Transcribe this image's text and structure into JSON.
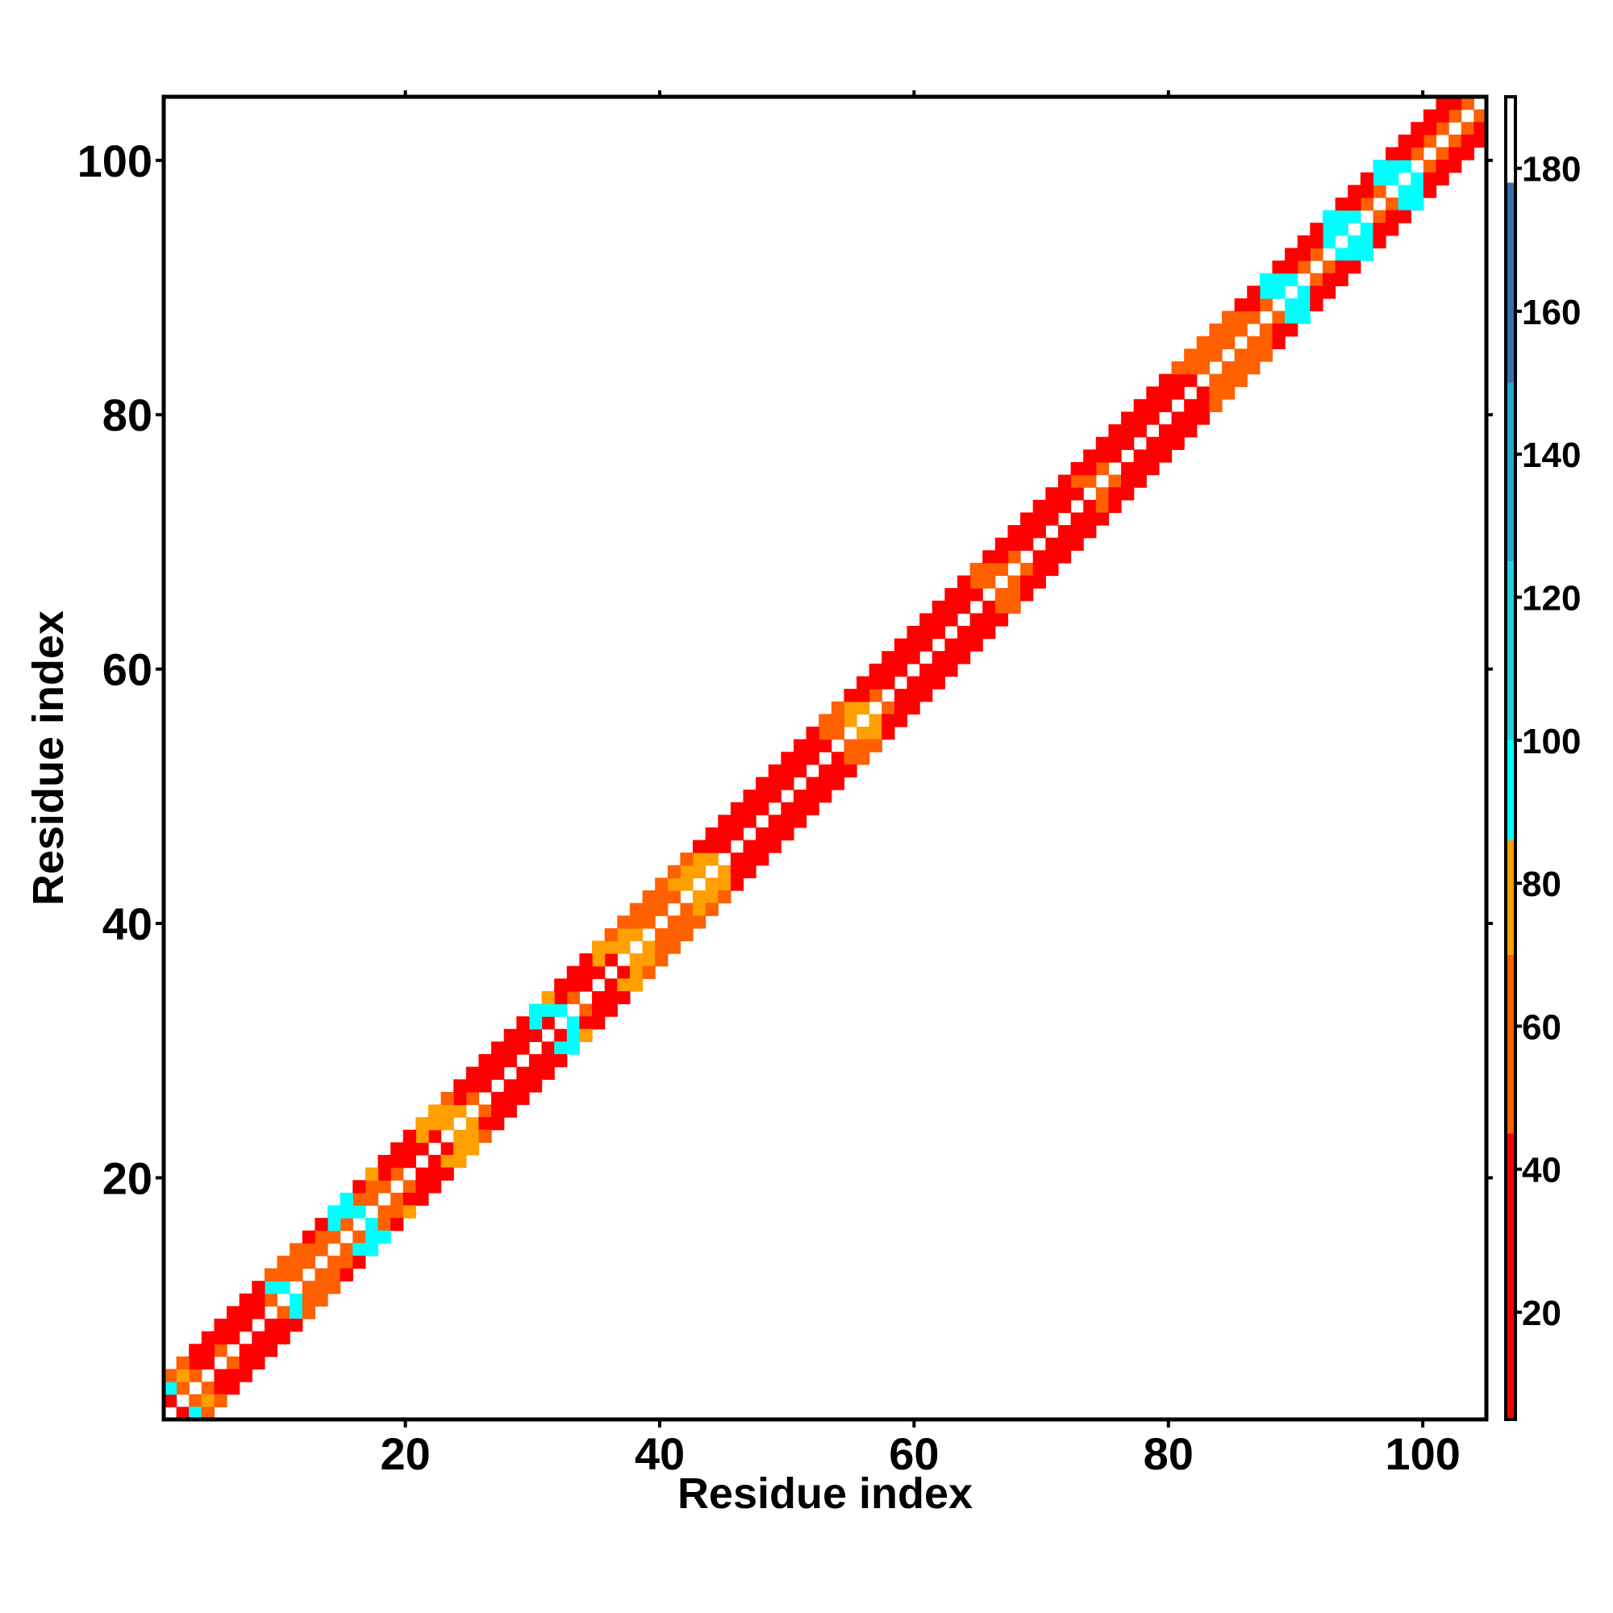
{
  "chart_data": {
    "type": "heatmap",
    "title": "",
    "xlabel": "Residue index",
    "ylabel": "Residue index",
    "xlim": [
      1,
      105
    ],
    "ylim": [
      1,
      105
    ],
    "xticks": [
      20,
      40,
      60,
      80,
      100
    ],
    "yticks": [
      20,
      40,
      60,
      80,
      100
    ],
    "colorbar": {
      "ticks": [
        20,
        40,
        60,
        80,
        100,
        120,
        140,
        160,
        180
      ],
      "range": [
        5,
        190
      ],
      "palette": [
        {
          "min": 5,
          "max": 45,
          "color": "#ff0000"
        },
        {
          "min": 45,
          "max": 70,
          "color": "#ff6000"
        },
        {
          "min": 70,
          "max": 86,
          "color": "#ffa000"
        },
        {
          "min": 86,
          "max": 100,
          "color": "#00ffff"
        },
        {
          "min": 100,
          "max": 125,
          "color": "#22d0e0"
        },
        {
          "min": 125,
          "max": 150,
          "color": "#2aa6cc"
        },
        {
          "min": 150,
          "max": 178,
          "color": "#3a6eaa"
        },
        {
          "min": 178,
          "max": 190,
          "color": "#ffffff"
        }
      ]
    },
    "residues": 105,
    "description_of_values": "Values are nonzero only within ~3 residues of the diagonal; diagonal is blank.",
    "offdiag_values": {
      "offset_1": [
        28,
        60,
        60,
        30,
        60,
        20,
        20,
        20,
        60,
        90,
        60,
        60,
        60,
        55,
        60,
        90,
        60,
        60,
        60,
        30,
        30,
        30,
        75,
        75,
        55,
        30,
        30,
        30,
        30,
        30,
        30,
        90,
        55,
        30,
        30,
        30,
        75,
        75,
        55,
        55,
        55,
        75,
        75,
        75,
        30,
        30,
        30,
        30,
        30,
        30,
        30,
        30,
        30,
        55,
        75,
        75,
        55,
        30,
        30,
        30,
        30,
        30,
        30,
        30,
        30,
        55,
        55,
        55,
        30,
        30,
        30,
        30,
        30,
        55,
        55,
        30,
        30,
        30,
        30,
        30,
        30,
        30,
        55,
        55,
        55,
        55,
        55,
        55,
        90,
        90,
        55,
        55,
        90,
        90,
        90,
        55,
        55,
        90,
        90,
        55,
        55,
        55,
        55,
        55
      ],
      "offset_2": [
        90,
        75,
        30,
        30,
        30,
        30,
        30,
        30,
        90,
        55,
        55,
        60,
        60,
        90,
        90,
        55,
        60,
        30,
        30,
        30,
        75,
        75,
        75,
        30,
        30,
        30,
        30,
        30,
        30,
        90,
        90,
        30,
        30,
        30,
        75,
        75,
        75,
        55,
        55,
        55,
        75,
        75,
        75,
        30,
        30,
        30,
        30,
        30,
        30,
        30,
        30,
        30,
        55,
        55,
        75,
        30,
        30,
        30,
        30,
        30,
        30,
        30,
        30,
        30,
        55,
        55,
        30,
        30,
        30,
        30,
        30,
        30,
        55,
        30,
        30,
        30,
        30,
        30,
        30,
        30,
        30,
        55,
        55,
        55,
        55,
        55,
        30,
        90,
        90,
        30,
        30,
        30,
        90,
        90,
        30,
        30,
        90,
        90,
        30,
        30,
        30,
        30,
        30
      ],
      "offset_3": [
        55,
        55,
        30,
        30,
        30,
        30,
        30,
        30,
        55,
        55,
        55,
        30,
        30,
        90,
        90,
        30,
        75,
        30,
        30,
        30,
        75,
        75,
        55,
        30,
        30,
        30,
        30,
        30,
        30,
        90,
        75,
        30,
        30,
        30,
        75,
        55,
        55,
        55,
        55,
        55,
        55,
        55,
        30,
        30,
        30,
        30,
        30,
        30,
        30,
        30,
        30,
        30,
        55,
        55,
        30,
        30,
        30,
        30,
        30,
        30,
        30,
        30,
        30,
        30,
        55,
        30,
        30,
        30,
        30,
        30,
        30,
        30,
        30,
        30,
        30,
        30,
        30,
        30,
        30,
        30,
        55,
        55,
        55,
        55,
        55,
        30,
        30,
        90,
        30,
        30,
        30,
        30,
        90,
        30,
        30,
        30,
        90,
        30,
        30,
        30,
        30,
        30
      ]
    }
  }
}
